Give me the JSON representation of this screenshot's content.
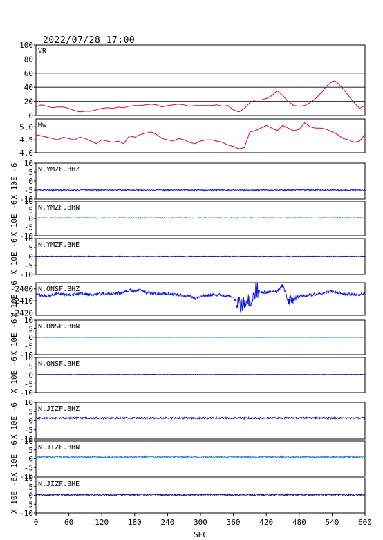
{
  "timestamp": "2022/07/28 17:00",
  "chart_data": {
    "type": "line",
    "x_axis": {
      "label": "SEC",
      "range": [
        0,
        600
      ],
      "ticks": [
        0,
        60,
        120,
        180,
        240,
        300,
        360,
        420,
        480,
        540,
        600
      ]
    },
    "panels": [
      {
        "id": "vr",
        "label": "VR",
        "color": "#d6003c",
        "grid": true,
        "ylim": [
          0,
          100
        ],
        "yticks": [
          0,
          20,
          40,
          60,
          80,
          100
        ],
        "ytick_labels": [
          "0",
          "20",
          "40",
          "60",
          "80",
          "100"
        ],
        "x": [
          0,
          10,
          20,
          30,
          40,
          50,
          60,
          70,
          80,
          90,
          100,
          110,
          120,
          130,
          140,
          150,
          160,
          170,
          180,
          190,
          200,
          210,
          220,
          230,
          240,
          250,
          260,
          270,
          280,
          290,
          300,
          310,
          320,
          330,
          340,
          350,
          360,
          370,
          380,
          390,
          400,
          410,
          420,
          430,
          440,
          450,
          460,
          470,
          480,
          490,
          500,
          510,
          520,
          530,
          540,
          545,
          550,
          560,
          570,
          580,
          590,
          600
        ],
        "y": [
          12,
          15,
          13,
          11,
          12,
          12,
          10,
          7,
          5,
          6,
          6,
          8,
          10,
          11,
          10,
          12,
          11,
          13,
          14,
          14,
          15,
          16,
          15,
          12,
          14,
          15,
          16,
          15,
          13,
          14,
          14,
          14,
          14,
          15,
          13,
          14,
          8,
          5,
          10,
          18,
          22,
          22,
          24,
          28,
          35,
          28,
          20,
          14,
          13,
          14,
          18,
          24,
          32,
          42,
          48,
          49,
          46,
          38,
          28,
          18,
          10,
          14
        ]
      },
      {
        "id": "mw",
        "label": "Mw",
        "color": "#d6003c",
        "grid": false,
        "ylim": [
          4.0,
          5.3
        ],
        "yticks": [
          4.0,
          4.5,
          5.0
        ],
        "ytick_labels": [
          "4.0",
          "4.5",
          "5.0"
        ],
        "x": [
          0,
          10,
          20,
          30,
          40,
          50,
          60,
          70,
          80,
          90,
          100,
          110,
          120,
          130,
          140,
          150,
          160,
          170,
          180,
          190,
          200,
          210,
          220,
          230,
          240,
          250,
          260,
          270,
          280,
          290,
          300,
          310,
          320,
          330,
          340,
          350,
          360,
          370,
          380,
          390,
          400,
          410,
          420,
          430,
          440,
          450,
          460,
          470,
          480,
          490,
          500,
          510,
          520,
          530,
          540,
          550,
          560,
          570,
          580,
          590,
          600
        ],
        "y": [
          4.7,
          4.65,
          4.6,
          4.55,
          4.5,
          4.6,
          4.55,
          4.5,
          4.6,
          4.55,
          4.45,
          4.35,
          4.5,
          4.45,
          4.4,
          4.45,
          4.35,
          4.65,
          4.6,
          4.7,
          4.75,
          4.8,
          4.7,
          4.55,
          4.5,
          4.45,
          4.55,
          4.5,
          4.4,
          4.35,
          4.45,
          4.5,
          4.5,
          4.45,
          4.4,
          4.3,
          4.25,
          4.15,
          4.2,
          4.8,
          4.85,
          4.95,
          5.05,
          4.95,
          4.85,
          5.05,
          4.95,
          4.85,
          4.9,
          5.15,
          5.0,
          4.95,
          4.95,
          4.9,
          4.8,
          4.7,
          4.55,
          4.5,
          4.4,
          4.45,
          4.7
        ]
      },
      {
        "id": "ymzf-bhz",
        "label": "N.YMZF.BHZ",
        "color": "#0a14b4",
        "ylabel": "X 10E -6",
        "ylim": [
          -10,
          10
        ],
        "yticks": [
          -10,
          -5,
          0,
          5,
          10
        ],
        "ytick_labels": [
          "-10",
          "-5",
          "0",
          "5",
          "10"
        ],
        "baseline": -5.0,
        "noise": 0.3
      },
      {
        "id": "ymzf-bhn",
        "label": "N.YMZF.BHN",
        "color": "#1e78e6",
        "ylabel": "X 10E -6",
        "ylim": [
          -10,
          10
        ],
        "yticks": [
          -10,
          -5,
          0,
          5,
          10
        ],
        "ytick_labels": [
          "-10",
          "-5",
          "0",
          "5",
          "10"
        ],
        "baseline": 0.3,
        "noise": 0.25
      },
      {
        "id": "ymzf-bhe",
        "label": "N.YMZF.BHE",
        "color": "#0a0a78",
        "ylabel": "X 10E -6",
        "ylim": [
          -10,
          10
        ],
        "yticks": [
          -10,
          -5,
          0,
          5,
          10
        ],
        "ytick_labels": [
          "-10",
          "-5",
          "0",
          "5",
          "10"
        ],
        "baseline": 0.1,
        "noise": 0.2
      },
      {
        "id": "onsf-bhz",
        "label": "N.ONSF.BHZ",
        "color": "#0a14dc",
        "ylabel": "X 10E -6",
        "ylim": [
          -2422,
          -2395
        ],
        "yticks": [
          -2420,
          -2410,
          -2400
        ],
        "ytick_labels": [
          "-2420",
          "-2410",
          "-2400"
        ],
        "x": [
          0,
          20,
          40,
          60,
          80,
          100,
          120,
          140,
          160,
          170,
          180,
          190,
          200,
          220,
          240,
          260,
          280,
          290,
          300,
          320,
          340,
          360,
          370,
          380,
          390,
          400,
          420,
          440,
          450,
          455,
          460,
          470,
          480,
          500,
          520,
          540,
          560,
          580,
          600
        ],
        "y": [
          -2405,
          -2406,
          -2404,
          -2405,
          -2404,
          -2405,
          -2404,
          -2404,
          -2403,
          -2401,
          -2402,
          -2401,
          -2403,
          -2404,
          -2404,
          -2405,
          -2406,
          -2408,
          -2406,
          -2405,
          -2405,
          -2407,
          -2413,
          -2412,
          -2411,
          -2402,
          -2403,
          -2402,
          -2397,
          -2403,
          -2411,
          -2408,
          -2406,
          -2405,
          -2404,
          -2402,
          -2404,
          -2405,
          -2404
        ],
        "noise": 1.2,
        "bursts": [
          [
            365,
            405,
            7
          ],
          [
            460,
            475,
            4
          ]
        ]
      },
      {
        "id": "onsf-bhn",
        "label": "N.ONSF.BHN",
        "color": "#1e78e6",
        "ylabel": "X 10E -6",
        "ylim": [
          -10,
          10
        ],
        "yticks": [
          -10,
          -5,
          0,
          5,
          10
        ],
        "ytick_labels": [
          "-10",
          "-5",
          "0",
          "5",
          "10"
        ],
        "baseline": 0.0,
        "noise": 0.1
      },
      {
        "id": "onsf-bhe",
        "label": "N.ONSF.BHE",
        "color": "#0a0a78",
        "ylabel": "X 10E -6",
        "ylim": [
          -10,
          10
        ],
        "yticks": [
          -10,
          -5,
          0,
          5,
          10
        ],
        "ytick_labels": [
          "-10",
          "-5",
          "0",
          "5",
          "10"
        ],
        "baseline": 0.3,
        "noise": 0.1
      },
      {
        "id": "jizf-bhz",
        "label": "N.JIZF.BHZ",
        "color": "#0a0a8c",
        "ylabel": "X 10E -6",
        "ylim": [
          -10,
          10
        ],
        "yticks": [
          -10,
          -5,
          0,
          5,
          10
        ],
        "ytick_labels": [
          "-10",
          "-5",
          "0",
          "5",
          "10"
        ],
        "baseline": 1.5,
        "noise": 0.45
      },
      {
        "id": "jizf-bhn",
        "label": "N.JIZF.BHN",
        "color": "#1e78e6",
        "ylabel": "X 10E -6",
        "ylim": [
          -10,
          10
        ],
        "yticks": [
          -10,
          -5,
          0,
          5,
          10
        ],
        "ytick_labels": [
          "-10",
          "-5",
          "0",
          "5",
          "10"
        ],
        "baseline": 1.0,
        "noise": 0.5
      },
      {
        "id": "jizf-bhe",
        "label": "N.JIZF.BHE",
        "color": "#0a0a78",
        "ylabel": "X 10E -6",
        "ylim": [
          -10,
          10
        ],
        "yticks": [
          -10,
          -5,
          0,
          5,
          10
        ],
        "ytick_labels": [
          "-10",
          "-5",
          "0",
          "5",
          "10"
        ],
        "baseline": 0.3,
        "noise": 0.45
      }
    ]
  }
}
